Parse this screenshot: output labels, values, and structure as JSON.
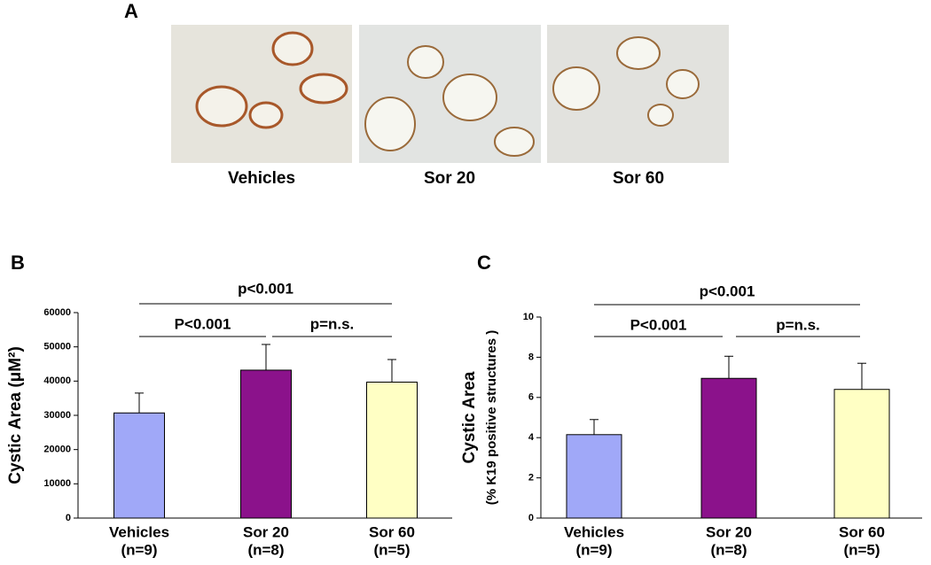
{
  "panel_a": {
    "label": "A",
    "captions": [
      "Vehicles",
      "Sor 20",
      "Sor 60"
    ]
  },
  "chart_data": [
    {
      "type": "bar",
      "panel_label": "B",
      "ylabel": "Cystic Area (μM²)",
      "categories": [
        "Vehicles",
        "Sor 20",
        "Sor 60"
      ],
      "category_sublabels": [
        "(n=9)",
        "(n=8)",
        "(n=5)"
      ],
      "values": [
        30700,
        43200,
        39700
      ],
      "errors": [
        5800,
        7500,
        6600
      ],
      "colors": [
        "#a0a8f8",
        "#8b128b",
        "#ffffc4"
      ],
      "ylim": [
        0,
        60000
      ],
      "yticks": [
        0,
        10000,
        20000,
        30000,
        40000,
        50000,
        60000
      ],
      "annotations": [
        "p<0.001",
        "P<0.001",
        "p=n.s."
      ]
    },
    {
      "type": "bar",
      "panel_label": "C",
      "ylabel": "Cystic Area",
      "ylabel2": "(% K19 positive structures )",
      "categories": [
        "Vehicles",
        "Sor 20",
        "Sor 60"
      ],
      "category_sublabels": [
        "(n=9)",
        "(n=8)",
        "(n=5)"
      ],
      "values": [
        4.15,
        6.95,
        6.4
      ],
      "errors": [
        0.75,
        1.1,
        1.3
      ],
      "colors": [
        "#a0a8f8",
        "#8b128b",
        "#ffffc4"
      ],
      "ylim": [
        0,
        10
      ],
      "yticks": [
        0,
        2,
        4,
        6,
        8,
        10
      ],
      "annotations": [
        "p<0.001",
        "P<0.001",
        "p=n.s."
      ]
    }
  ]
}
